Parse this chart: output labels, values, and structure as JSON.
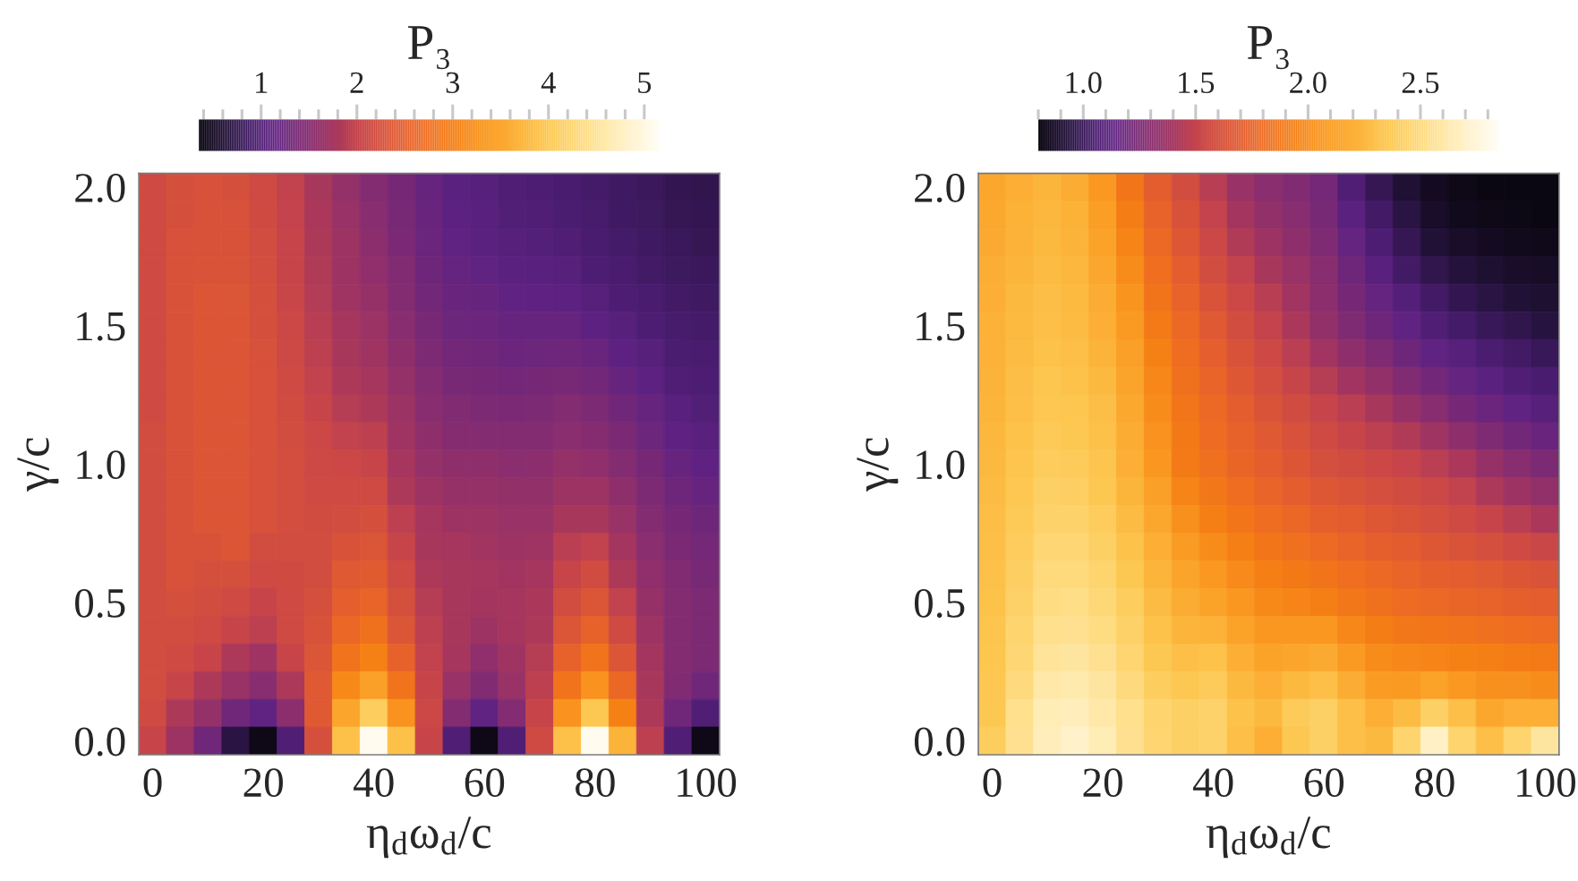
{
  "chart_data": [
    {
      "type": "heatmap",
      "xlabel": "η$_{d}$ω$_{d}$/c",
      "ylabel": "γ/c",
      "clabel": "P₃",
      "categories": [
        "0",
        null,
        null,
        null,
        "20",
        null,
        null,
        null,
        "40",
        null,
        null,
        null,
        "60",
        null,
        null,
        null,
        "80",
        null,
        null,
        null,
        "100"
      ],
      "y_categories": [
        "2.0",
        null,
        null,
        null,
        null,
        "1.5",
        null,
        null,
        null,
        null,
        "1.0",
        null,
        null,
        null,
        null,
        "0.5",
        null,
        null,
        null,
        null,
        "0.0"
      ],
      "clim": [
        0.35,
        5.16
      ],
      "cticks": [
        {
          "value": 0.4,
          "label": null
        },
        {
          "value": 0.6,
          "label": null
        },
        {
          "value": 0.8,
          "label": null
        },
        1,
        {
          "value": 1.2,
          "label": null
        },
        {
          "value": 1.4,
          "label": null
        },
        {
          "value": 1.6,
          "label": null
        },
        {
          "value": 1.8,
          "label": null
        },
        2,
        {
          "value": 2.2,
          "label": null
        },
        {
          "value": 2.4,
          "label": null
        },
        {
          "value": 2.6,
          "label": null
        },
        {
          "value": 2.8,
          "label": null
        },
        3,
        {
          "value": 3.2,
          "label": null
        },
        {
          "value": 3.4,
          "label": null
        },
        {
          "value": 3.6,
          "label": null
        },
        {
          "value": 3.8,
          "label": null
        },
        4,
        {
          "value": 4.2,
          "label": null
        },
        {
          "value": 4.4,
          "label": null
        },
        {
          "value": 4.6,
          "label": null
        },
        {
          "value": 4.8,
          "label": null
        },
        5
      ],
      "cells": [
        [
          2.13,
          2.23,
          2.25,
          2.23,
          2.13,
          1.98,
          1.79,
          1.61,
          1.47,
          1.35,
          1.2,
          1.1,
          1.05,
          1.0,
          0.98,
          0.94,
          0.9,
          0.86,
          0.82,
          0.78,
          0.76
        ],
        [
          2.13,
          2.23,
          2.28,
          2.26,
          2.15,
          1.99,
          1.8,
          1.65,
          1.51,
          1.37,
          1.22,
          1.12,
          1.07,
          1.02,
          1.0,
          0.97,
          0.92,
          0.87,
          0.84,
          0.79,
          0.78
        ],
        [
          2.13,
          2.25,
          2.28,
          2.28,
          2.18,
          2.01,
          1.82,
          1.69,
          1.54,
          1.4,
          1.25,
          1.15,
          1.1,
          1.05,
          1.03,
          1.0,
          0.94,
          0.9,
          0.86,
          0.82,
          0.8
        ],
        [
          2.13,
          2.28,
          2.3,
          2.3,
          2.21,
          2.03,
          1.84,
          1.7,
          1.59,
          1.44,
          1.28,
          1.18,
          1.15,
          1.1,
          1.08,
          1.06,
          0.98,
          0.94,
          0.89,
          0.84,
          0.83
        ],
        [
          2.13,
          2.28,
          2.35,
          2.33,
          2.23,
          2.05,
          1.87,
          1.72,
          1.63,
          1.47,
          1.32,
          1.22,
          1.2,
          1.15,
          1.13,
          1.12,
          1.05,
          0.98,
          0.94,
          0.88,
          0.86
        ],
        [
          2.13,
          2.28,
          2.35,
          2.35,
          2.23,
          2.08,
          1.9,
          1.76,
          1.67,
          1.51,
          1.37,
          1.27,
          1.25,
          1.2,
          1.2,
          1.2,
          1.12,
          1.05,
          0.98,
          0.92,
          0.9
        ],
        [
          2.13,
          2.28,
          2.35,
          2.35,
          2.25,
          2.11,
          1.93,
          1.79,
          1.72,
          1.56,
          1.41,
          1.32,
          1.3,
          1.25,
          1.27,
          1.28,
          1.22,
          1.12,
          1.05,
          0.96,
          0.94
        ],
        [
          2.13,
          2.28,
          2.35,
          2.35,
          2.25,
          2.13,
          1.98,
          1.83,
          1.77,
          1.61,
          1.46,
          1.38,
          1.35,
          1.32,
          1.35,
          1.38,
          1.32,
          1.2,
          1.12,
          1.0,
          0.98
        ],
        [
          2.13,
          2.28,
          2.35,
          2.35,
          2.25,
          2.16,
          2.03,
          1.88,
          1.83,
          1.67,
          1.51,
          1.44,
          1.41,
          1.4,
          1.41,
          1.46,
          1.41,
          1.3,
          1.2,
          1.07,
          1.02
        ],
        [
          2.18,
          2.28,
          2.35,
          2.35,
          2.25,
          2.18,
          2.08,
          1.98,
          1.93,
          1.72,
          1.56,
          1.49,
          1.47,
          1.46,
          1.47,
          1.53,
          1.49,
          1.4,
          1.27,
          1.13,
          1.08
        ],
        [
          2.18,
          2.28,
          2.35,
          2.35,
          2.25,
          2.2,
          2.11,
          2.08,
          2.03,
          1.77,
          1.61,
          1.56,
          1.56,
          1.53,
          1.54,
          1.61,
          1.58,
          1.47,
          1.35,
          1.2,
          1.13
        ],
        [
          2.18,
          2.28,
          2.35,
          2.35,
          2.25,
          2.2,
          2.13,
          2.13,
          2.13,
          1.83,
          1.69,
          1.63,
          1.63,
          1.6,
          1.6,
          1.7,
          1.69,
          1.56,
          1.41,
          1.28,
          1.2
        ],
        [
          2.18,
          2.28,
          2.35,
          2.35,
          2.25,
          2.2,
          2.16,
          2.18,
          2.23,
          1.93,
          1.76,
          1.7,
          1.69,
          1.65,
          1.66,
          1.79,
          1.79,
          1.65,
          1.47,
          1.35,
          1.28
        ],
        [
          2.18,
          2.28,
          2.28,
          2.35,
          2.18,
          2.18,
          2.18,
          2.28,
          2.33,
          2.03,
          1.79,
          1.76,
          1.74,
          1.7,
          1.72,
          1.91,
          1.98,
          1.75,
          1.53,
          1.4,
          1.33
        ],
        [
          2.18,
          2.28,
          2.23,
          2.23,
          2.13,
          2.15,
          2.19,
          2.38,
          2.43,
          2.13,
          1.83,
          1.79,
          1.76,
          1.74,
          1.77,
          2.03,
          2.16,
          1.83,
          1.58,
          1.44,
          1.38
        ],
        [
          2.18,
          2.23,
          2.18,
          2.13,
          2.03,
          2.13,
          2.23,
          2.48,
          2.58,
          2.23,
          1.88,
          1.79,
          1.75,
          1.76,
          1.81,
          2.18,
          2.33,
          1.98,
          1.63,
          1.46,
          1.41
        ],
        [
          2.18,
          2.18,
          2.13,
          2.03,
          1.93,
          2.13,
          2.28,
          2.63,
          2.78,
          2.33,
          1.93,
          1.79,
          1.69,
          1.76,
          1.83,
          2.33,
          2.53,
          2.13,
          1.69,
          1.47,
          1.42
        ],
        [
          2.18,
          2.13,
          2.03,
          1.83,
          1.72,
          2.03,
          2.33,
          2.83,
          3.03,
          2.53,
          1.98,
          1.76,
          1.58,
          1.72,
          1.88,
          2.53,
          2.83,
          2.33,
          1.75,
          1.47,
          1.41
        ],
        [
          2.18,
          2.03,
          1.83,
          1.65,
          1.51,
          1.83,
          2.38,
          3.13,
          3.4,
          2.83,
          2.03,
          1.65,
          1.44,
          1.65,
          1.93,
          2.83,
          3.23,
          2.63,
          1.79,
          1.44,
          1.3
        ],
        [
          2.13,
          1.83,
          1.61,
          1.3,
          1.15,
          1.54,
          2.38,
          3.5,
          4.1,
          3.23,
          2.08,
          1.47,
          1.15,
          1.47,
          2.03,
          3.23,
          4.0,
          3.03,
          1.83,
          1.3,
          1.0
        ],
        [
          2.03,
          1.69,
          1.3,
          0.7,
          0.4,
          1.0,
          2.23,
          3.9,
          5.1,
          3.9,
          2.03,
          1.0,
          0.4,
          1.0,
          2.13,
          3.9,
          5.1,
          3.7,
          1.93,
          1.0,
          0.4
        ]
      ]
    },
    {
      "type": "heatmap",
      "xlabel": "η$_{d}$ω$_{d}$/c",
      "ylabel": "γ/c",
      "clabel": "P₃",
      "categories": [
        "0",
        null,
        null,
        null,
        "20",
        null,
        null,
        null,
        "40",
        null,
        null,
        null,
        "60",
        null,
        null,
        null,
        "80",
        null,
        null,
        null,
        "100"
      ],
      "y_categories": [
        "2.0",
        null,
        null,
        null,
        null,
        "1.5",
        null,
        null,
        null,
        null,
        "1.0",
        null,
        null,
        null,
        null,
        "0.5",
        null,
        null,
        null,
        null,
        "0.0"
      ],
      "clim": [
        0.8,
        2.85
      ],
      "cticks": [
        {
          "value": 0.8,
          "label": null
        },
        {
          "value": 0.9,
          "label": null
        },
        {
          "value": 1.0,
          "label": "1.0"
        },
        {
          "value": 1.1,
          "label": null
        },
        {
          "value": 1.2,
          "label": null
        },
        {
          "value": 1.3,
          "label": null
        },
        {
          "value": 1.4,
          "label": null
        },
        {
          "value": 1.5,
          "label": "1.5"
        },
        {
          "value": 1.6,
          "label": null
        },
        {
          "value": 1.7,
          "label": null
        },
        {
          "value": 1.8,
          "label": null
        },
        {
          "value": 1.9,
          "label": null
        },
        {
          "value": 2.0,
          "label": "2.0"
        },
        {
          "value": 2.1,
          "label": null
        },
        {
          "value": 2.2,
          "label": null
        },
        {
          "value": 2.3,
          "label": null
        },
        {
          "value": 2.4,
          "label": null
        },
        {
          "value": 2.5,
          "label": "2.5"
        },
        {
          "value": 2.6,
          "label": null
        },
        {
          "value": 2.7,
          "label": null
        },
        {
          "value": 2.8,
          "label": null
        }
      ],
      "cells": [
        [
          2.15,
          2.2,
          2.24,
          2.18,
          2.06,
          1.87,
          1.7,
          1.58,
          1.46,
          1.36,
          1.3,
          1.27,
          1.22,
          1.08,
          0.99,
          0.91,
          0.85,
          0.82,
          0.8,
          0.8,
          0.8
        ],
        [
          2.16,
          2.21,
          2.25,
          2.21,
          2.09,
          1.92,
          1.74,
          1.62,
          1.5,
          1.4,
          1.33,
          1.29,
          1.24,
          1.12,
          1.03,
          0.95,
          0.88,
          0.84,
          0.82,
          0.81,
          0.8
        ],
        [
          2.17,
          2.22,
          2.26,
          2.23,
          2.12,
          1.96,
          1.78,
          1.66,
          1.54,
          1.44,
          1.37,
          1.32,
          1.26,
          1.16,
          1.07,
          0.99,
          0.92,
          0.88,
          0.85,
          0.84,
          0.83
        ],
        [
          2.19,
          2.24,
          2.28,
          2.25,
          2.15,
          2.0,
          1.82,
          1.7,
          1.58,
          1.49,
          1.41,
          1.36,
          1.29,
          1.2,
          1.11,
          1.03,
          0.97,
          0.93,
          0.9,
          0.88,
          0.87
        ],
        [
          2.2,
          2.26,
          2.29,
          2.27,
          2.18,
          2.04,
          1.86,
          1.74,
          1.63,
          1.54,
          1.46,
          1.39,
          1.31,
          1.23,
          1.16,
          1.09,
          1.03,
          0.98,
          0.95,
          0.92,
          0.9
        ],
        [
          2.21,
          2.27,
          2.3,
          2.28,
          2.2,
          2.07,
          1.9,
          1.78,
          1.67,
          1.58,
          1.5,
          1.42,
          1.33,
          1.26,
          1.2,
          1.14,
          1.08,
          1.04,
          1.0,
          0.97,
          0.94
        ],
        [
          2.22,
          2.28,
          2.32,
          2.3,
          2.23,
          2.1,
          1.94,
          1.81,
          1.71,
          1.62,
          1.55,
          1.47,
          1.39,
          1.32,
          1.26,
          1.2,
          1.14,
          1.1,
          1.06,
          1.03,
          1.0
        ],
        [
          2.23,
          2.29,
          2.34,
          2.32,
          2.26,
          2.13,
          1.97,
          1.84,
          1.75,
          1.66,
          1.59,
          1.52,
          1.45,
          1.39,
          1.33,
          1.27,
          1.21,
          1.16,
          1.12,
          1.08,
          1.05
        ],
        [
          2.24,
          2.3,
          2.35,
          2.34,
          2.29,
          2.16,
          2.0,
          1.87,
          1.78,
          1.7,
          1.63,
          1.57,
          1.51,
          1.47,
          1.41,
          1.35,
          1.29,
          1.23,
          1.18,
          1.14,
          1.1
        ],
        [
          2.25,
          2.32,
          2.37,
          2.36,
          2.31,
          2.18,
          2.03,
          1.89,
          1.8,
          1.73,
          1.67,
          1.61,
          1.56,
          1.52,
          1.48,
          1.44,
          1.38,
          1.32,
          1.26,
          1.21,
          1.17
        ],
        [
          2.26,
          2.33,
          2.39,
          2.38,
          2.33,
          2.2,
          2.05,
          1.9,
          1.83,
          1.76,
          1.7,
          1.65,
          1.6,
          1.57,
          1.54,
          1.51,
          1.47,
          1.42,
          1.35,
          1.29,
          1.25
        ],
        [
          2.28,
          2.35,
          2.42,
          2.41,
          2.36,
          2.24,
          2.1,
          1.96,
          1.88,
          1.81,
          1.75,
          1.7,
          1.66,
          1.63,
          1.6,
          1.57,
          1.54,
          1.49,
          1.43,
          1.37,
          1.33
        ],
        [
          2.29,
          2.37,
          2.44,
          2.44,
          2.39,
          2.28,
          2.15,
          2.02,
          1.93,
          1.87,
          1.81,
          1.77,
          1.72,
          1.69,
          1.66,
          1.63,
          1.6,
          1.56,
          1.51,
          1.46,
          1.42
        ],
        [
          2.3,
          2.39,
          2.47,
          2.47,
          2.42,
          2.32,
          2.2,
          2.08,
          2.0,
          1.93,
          1.87,
          1.83,
          1.79,
          1.75,
          1.72,
          1.69,
          1.66,
          1.63,
          1.6,
          1.56,
          1.53
        ],
        [
          2.31,
          2.41,
          2.5,
          2.5,
          2.45,
          2.36,
          2.24,
          2.13,
          2.06,
          1.99,
          1.93,
          1.89,
          1.86,
          1.82,
          1.78,
          1.75,
          1.72,
          1.7,
          1.68,
          1.65,
          1.63
        ],
        [
          2.32,
          2.43,
          2.52,
          2.53,
          2.48,
          2.4,
          2.28,
          2.18,
          2.12,
          2.05,
          1.98,
          1.96,
          1.93,
          1.88,
          1.84,
          1.8,
          1.78,
          1.76,
          1.74,
          1.72,
          1.7
        ],
        [
          2.33,
          2.45,
          2.55,
          2.56,
          2.52,
          2.43,
          2.32,
          2.24,
          2.22,
          2.12,
          2.05,
          2.05,
          2.05,
          1.97,
          1.92,
          1.88,
          1.87,
          1.85,
          1.83,
          1.81,
          1.8
        ],
        [
          2.34,
          2.47,
          2.58,
          2.6,
          2.56,
          2.46,
          2.36,
          2.3,
          2.32,
          2.2,
          2.12,
          2.14,
          2.17,
          2.07,
          2.0,
          1.97,
          1.96,
          1.94,
          1.93,
          1.91,
          1.9
        ],
        [
          2.35,
          2.5,
          2.62,
          2.64,
          2.6,
          2.5,
          2.4,
          2.36,
          2.38,
          2.26,
          2.2,
          2.26,
          2.3,
          2.18,
          2.08,
          2.07,
          2.12,
          2.06,
          2.02,
          2.02,
          2.0
        ],
        [
          2.36,
          2.55,
          2.66,
          2.68,
          2.62,
          2.55,
          2.45,
          2.42,
          2.44,
          2.32,
          2.26,
          2.38,
          2.42,
          2.3,
          2.2,
          2.28,
          2.42,
          2.3,
          2.15,
          2.2,
          2.2
        ],
        [
          2.4,
          2.56,
          2.68,
          2.72,
          2.66,
          2.56,
          2.46,
          2.42,
          2.44,
          2.3,
          2.2,
          2.36,
          2.42,
          2.3,
          2.26,
          2.45,
          2.7,
          2.45,
          2.3,
          2.45,
          2.6
        ]
      ]
    }
  ]
}
